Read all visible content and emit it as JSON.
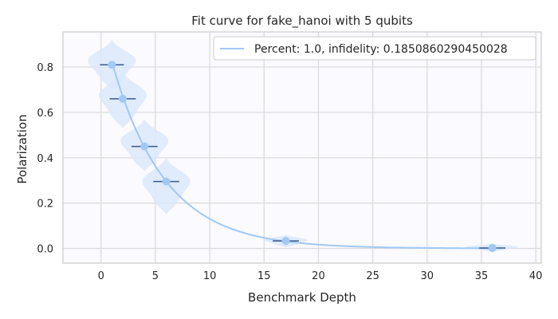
{
  "chart_data": {
    "type": "scatter",
    "title": "Fit curve for fake_hanoi with 5 qubits",
    "xlabel": "Benchmark Depth",
    "ylabel": "Polarization",
    "xlim": [
      -3.5,
      40.5
    ],
    "ylim": [
      -0.065,
      0.955
    ],
    "x_ticks": [
      0,
      5,
      10,
      15,
      20,
      25,
      30,
      35,
      40
    ],
    "y_ticks": [
      0.0,
      0.2,
      0.4,
      0.6,
      0.8
    ],
    "grid": true,
    "legend_position": "top-right",
    "points": [
      {
        "x": 1,
        "y": 0.81,
        "xerr": 1.1
      },
      {
        "x": 2,
        "y": 0.66,
        "xerr": 1.2
      },
      {
        "x": 4,
        "y": 0.45,
        "xerr": 1.2
      },
      {
        "x": 6,
        "y": 0.295,
        "xerr": 1.2
      },
      {
        "x": 17,
        "y": 0.033,
        "xerr": 1.2
      },
      {
        "x": 36,
        "y": 0.002,
        "xerr": 1.2
      }
    ],
    "violins": [
      {
        "x": 1,
        "ymin": 0.7,
        "ymax": 0.92,
        "halfwidth": 2.4
      },
      {
        "x": 2,
        "ymin": 0.53,
        "ymax": 0.78,
        "halfwidth": 2.4
      },
      {
        "x": 4,
        "ymin": 0.34,
        "ymax": 0.57,
        "halfwidth": 2.4
      },
      {
        "x": 6,
        "ymin": 0.15,
        "ymax": 0.4,
        "halfwidth": 2.4
      },
      {
        "x": 17,
        "ymin": 0.005,
        "ymax": 0.06,
        "halfwidth": 2.2
      },
      {
        "x": 36,
        "ymin": -0.015,
        "ymax": 0.022,
        "halfwidth": 2.6
      }
    ],
    "series": [
      {
        "name": "Percent: 1.0, infidelity: 0.1850860290450028",
        "type": "fit",
        "A": 1.01,
        "decay": 0.815,
        "B": 0.0
      }
    ],
    "colors": {
      "line": "#a1c9f4",
      "marker": "#a1c9f4",
      "violin": "#dbe8fc",
      "errorbar": "#3a5a8c",
      "plot_bg": "#fafaff",
      "grid": "#d9d9d9",
      "spine": "#cccccc"
    }
  }
}
